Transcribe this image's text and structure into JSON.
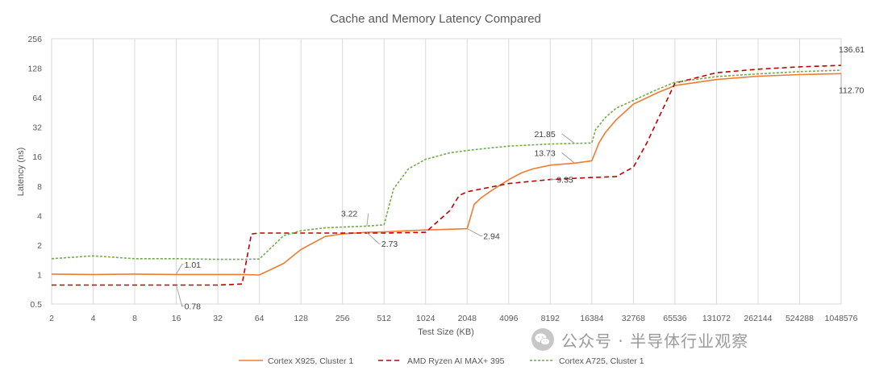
{
  "chart_data": {
    "type": "line",
    "title": "Cache and Memory Latency Compared",
    "xlabel": "Test Size (KB)",
    "ylabel": "Latency (ns)",
    "x_scale": "log2",
    "y_scale": "log2",
    "xlim": [
      2,
      1048576
    ],
    "ylim": [
      0.5,
      256
    ],
    "x_ticks": [
      2,
      4,
      8,
      16,
      32,
      64,
      128,
      256,
      512,
      1024,
      2048,
      4096,
      8192,
      16384,
      32768,
      65536,
      131072,
      262144,
      524288,
      1048576
    ],
    "x_tick_labels": [
      "2",
      "4",
      "8",
      "16",
      "32",
      "64",
      "128",
      "256",
      "512",
      "1024",
      "2048",
      "4096",
      "8192",
      "16384",
      "32768",
      "65536",
      "131072",
      "262144",
      "524288",
      "1048576"
    ],
    "y_ticks": [
      0.5,
      1,
      2,
      4,
      8,
      16,
      32,
      64,
      128,
      256
    ],
    "y_tick_labels": [
      "0.5",
      "1",
      "2",
      "4",
      "8",
      "16",
      "32",
      "64",
      "128",
      "256"
    ],
    "grid": "vertical",
    "legend_position": "bottom",
    "series": [
      {
        "name": "Cortex X925, Cluster 1",
        "color": "#ED7D31",
        "dash": "solid",
        "x": [
          2,
          4,
          8,
          16,
          32,
          48,
          64,
          96,
          128,
          192,
          256,
          384,
          512,
          768,
          1024,
          1536,
          2048,
          2304,
          2560,
          3072,
          4096,
          5120,
          6144,
          8192,
          12288,
          16384,
          18432,
          20480,
          24576,
          32768,
          49152,
          65536,
          131072,
          262144,
          524288,
          1048576
        ],
        "y": [
          1.01,
          1.0,
          1.01,
          1.0,
          1.0,
          1.0,
          0.99,
          1.3,
          1.8,
          2.45,
          2.6,
          2.7,
          2.73,
          2.8,
          2.85,
          2.9,
          2.94,
          5.2,
          6.0,
          7.2,
          9.3,
          11.0,
          12.0,
          13.1,
          13.73,
          14.5,
          22.0,
          28.0,
          38.0,
          55.0,
          72.0,
          85.0,
          98.0,
          106.0,
          110.0,
          112.7
        ]
      },
      {
        "name": "AMD Ryzen AI MAX+ 395",
        "color": "#C00000",
        "dash": "dashed",
        "x": [
          2,
          4,
          8,
          16,
          32,
          48,
          56,
          64,
          128,
          256,
          512,
          1024,
          1536,
          1792,
          2048,
          4096,
          8192,
          16384,
          24576,
          32768,
          40960,
          65536,
          131072,
          262144,
          524288,
          1048576
        ],
        "y": [
          0.78,
          0.78,
          0.78,
          0.78,
          0.78,
          0.8,
          2.6,
          2.65,
          2.65,
          2.65,
          2.65,
          2.7,
          4.5,
          6.4,
          7.0,
          8.5,
          9.35,
          9.8,
          10.0,
          12.5,
          22.0,
          90.0,
          115.0,
          125.0,
          132.0,
          136.61
        ]
      },
      {
        "name": "Cortex A725, Cluster 1",
        "color": "#70AD47",
        "dash": "dotted",
        "x": [
          2,
          4,
          8,
          16,
          32,
          48,
          64,
          96,
          128,
          192,
          256,
          384,
          512,
          600,
          768,
          1024,
          1536,
          2048,
          3072,
          4096,
          8192,
          12288,
          16384,
          17408,
          20480,
          24576,
          32768,
          49152,
          65536,
          131072,
          262144,
          524288,
          1048576
        ],
        "y": [
          1.45,
          1.55,
          1.45,
          1.45,
          1.43,
          1.43,
          1.44,
          2.5,
          2.8,
          3.0,
          3.05,
          3.12,
          3.22,
          7.5,
          12.0,
          15.0,
          17.5,
          18.5,
          19.7,
          20.5,
          21.5,
          21.85,
          22.0,
          30.0,
          40.0,
          50.0,
          60.0,
          78.0,
          92.0,
          105.0,
          112.0,
          118.0,
          122.0
        ]
      }
    ],
    "annotations": [
      {
        "text": "1.01",
        "series": 0,
        "x": 16,
        "y": 1.01
      },
      {
        "text": "0.78",
        "series": 1,
        "x": 16,
        "y": 0.78
      },
      {
        "text": "3.22",
        "series": 2,
        "x": 384,
        "y": 3.12
      },
      {
        "text": "2.73",
        "series": 0,
        "x": 384,
        "y": 2.7
      },
      {
        "text": "2.94",
        "series": 0,
        "x": 2048,
        "y": 2.94
      },
      {
        "text": "9.35",
        "series": 1,
        "x": 8192,
        "y": 9.35
      },
      {
        "text": "21.85",
        "series": 2,
        "x": 12288,
        "y": 21.85
      },
      {
        "text": "13.73",
        "series": 0,
        "x": 12288,
        "y": 13.73
      },
      {
        "text": "136.61",
        "series": 1,
        "x": 1048576,
        "y": 136.61
      },
      {
        "text": "112.70",
        "series": 0,
        "x": 1048576,
        "y": 112.7
      }
    ]
  },
  "watermark": {
    "text": "公众号 · 半导体行业观察",
    "icon": "wechat-icon"
  }
}
